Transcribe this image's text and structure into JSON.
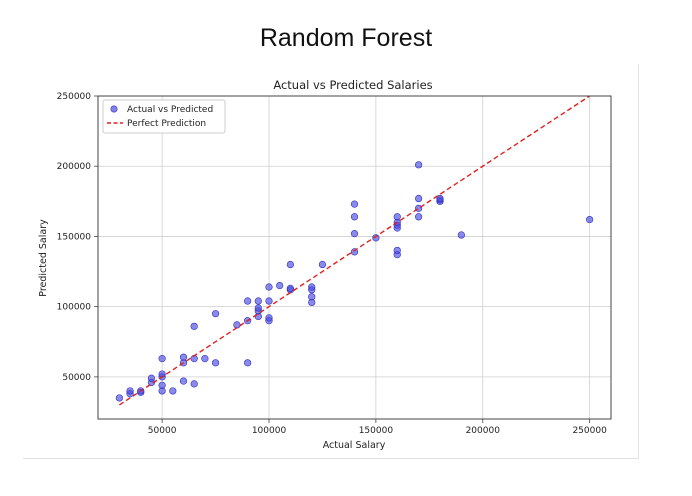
{
  "page": {
    "heading": "Random Forest"
  },
  "chart_data": {
    "type": "scatter",
    "title": "Actual vs Predicted Salaries",
    "xlabel": "Actual Salary",
    "ylabel": "Predicted Salary",
    "xlim": [
      20000,
      260000
    ],
    "ylim": [
      20000,
      250000
    ],
    "xticks": [
      50000,
      100000,
      150000,
      200000,
      250000
    ],
    "yticks": [
      50000,
      100000,
      150000,
      200000,
      250000
    ],
    "xtick_labels": [
      "50000",
      "100000",
      "150000",
      "200000",
      "250000"
    ],
    "ytick_labels": [
      "50000",
      "100000",
      "150000",
      "200000",
      "250000"
    ],
    "grid": true,
    "legend_position": "top-left",
    "series": [
      {
        "name": "Actual vs Predicted",
        "kind": "scatter",
        "color": "#4b4be0",
        "points": [
          [
            30000,
            35000
          ],
          [
            35000,
            38000
          ],
          [
            35000,
            40000
          ],
          [
            40000,
            39000
          ],
          [
            40000,
            40000
          ],
          [
            45000,
            46000
          ],
          [
            45000,
            49000
          ],
          [
            50000,
            40000
          ],
          [
            50000,
            44000
          ],
          [
            50000,
            50000
          ],
          [
            50000,
            52000
          ],
          [
            50000,
            63000
          ],
          [
            55000,
            40000
          ],
          [
            60000,
            47000
          ],
          [
            60000,
            60000
          ],
          [
            60000,
            64000
          ],
          [
            65000,
            45000
          ],
          [
            65000,
            63000
          ],
          [
            65000,
            86000
          ],
          [
            70000,
            63000
          ],
          [
            75000,
            60000
          ],
          [
            75000,
            95000
          ],
          [
            85000,
            87000
          ],
          [
            90000,
            60000
          ],
          [
            90000,
            90000
          ],
          [
            90000,
            104000
          ],
          [
            95000,
            93000
          ],
          [
            95000,
            97000
          ],
          [
            95000,
            99000
          ],
          [
            95000,
            104000
          ],
          [
            100000,
            90000
          ],
          [
            100000,
            92000
          ],
          [
            100000,
            104000
          ],
          [
            100000,
            114000
          ],
          [
            105000,
            115000
          ],
          [
            110000,
            112000
          ],
          [
            110000,
            113000
          ],
          [
            110000,
            130000
          ],
          [
            120000,
            103000
          ],
          [
            120000,
            107000
          ],
          [
            120000,
            112000
          ],
          [
            120000,
            114000
          ],
          [
            125000,
            130000
          ],
          [
            140000,
            139000
          ],
          [
            140000,
            152000
          ],
          [
            140000,
            164000
          ],
          [
            140000,
            173000
          ],
          [
            150000,
            149000
          ],
          [
            160000,
            137000
          ],
          [
            160000,
            140000
          ],
          [
            160000,
            156000
          ],
          [
            160000,
            158000
          ],
          [
            160000,
            160000
          ],
          [
            160000,
            164000
          ],
          [
            170000,
            164000
          ],
          [
            170000,
            170000
          ],
          [
            170000,
            177000
          ],
          [
            170000,
            201000
          ],
          [
            180000,
            175000
          ],
          [
            180000,
            176000
          ],
          [
            180000,
            177000
          ],
          [
            190000,
            151000
          ],
          [
            250000,
            162000
          ]
        ]
      },
      {
        "name": "Perfect Prediction",
        "kind": "line",
        "style": "dashed",
        "color": "#e02020",
        "x": [
          30000,
          250000
        ],
        "y": [
          30000,
          250000
        ]
      }
    ]
  }
}
